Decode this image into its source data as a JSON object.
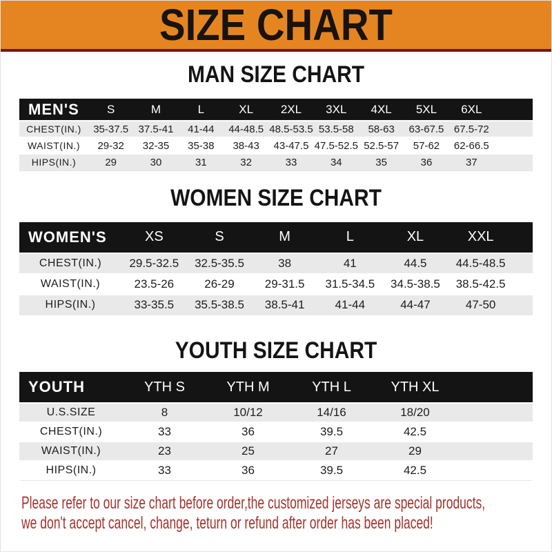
{
  "banner": {
    "title": "SIZE CHART"
  },
  "sections": {
    "men": {
      "heading": "MAN SIZE CHART",
      "header_label": "MEN'S",
      "columns": [
        "S",
        "M",
        "L",
        "XL",
        "2XL",
        "3XL",
        "4XL",
        "5XL",
        "6XL"
      ],
      "rows": [
        {
          "label": "CHEST(IN.)",
          "values": [
            "35-37.5",
            "37.5-41",
            "41-44",
            "44-48.5",
            "48.5-53.5",
            "53.5-58",
            "58-63",
            "63-67.5",
            "67.5-72"
          ]
        },
        {
          "label": "WAIST(IN.)",
          "values": [
            "29-32",
            "32-35",
            "35-38",
            "38-43",
            "43-47.5",
            "47.5-52.5",
            "52.5-57",
            "57-62",
            "62-66.5"
          ]
        },
        {
          "label": "HIPS(IN.)",
          "values": [
            "29",
            "30",
            "31",
            "32",
            "33",
            "34",
            "35",
            "36",
            "37"
          ]
        }
      ]
    },
    "women": {
      "heading": "WOMEN SIZE CHART",
      "header_label": "WOMEN'S",
      "columns": [
        "XS",
        "S",
        "M",
        "L",
        "XL",
        "XXL"
      ],
      "rows": [
        {
          "label": "CHEST(IN.)",
          "values": [
            "29.5-32.5",
            "32.5-35.5",
            "38",
            "41",
            "44.5",
            "44.5-48.5"
          ]
        },
        {
          "label": "WAIST(IN.)",
          "values": [
            "23.5-26",
            "26-29",
            "29-31.5",
            "31.5-34.5",
            "34.5-38.5",
            "38.5-42.5"
          ]
        },
        {
          "label": "HIPS(IN.)",
          "values": [
            "33-35.5",
            "35.5-38.5",
            "38.5-41",
            "41-44",
            "44-47",
            "47-50"
          ]
        }
      ]
    },
    "youth": {
      "heading": "YOUTH SIZE CHART",
      "header_label": "YOUTH",
      "columns": [
        "YTH S",
        "YTH M",
        "YTH L",
        "YTH XL"
      ],
      "rows": [
        {
          "label": "U.S.SIZE",
          "values": [
            "8",
            "10/12",
            "14/16",
            "18/20"
          ]
        },
        {
          "label": "CHEST(IN.)",
          "values": [
            "33",
            "36",
            "39.5",
            "42.5"
          ]
        },
        {
          "label": "WAIST(IN.)",
          "values": [
            "23",
            "25",
            "27",
            "29"
          ]
        },
        {
          "label": "HIPS(IN.)",
          "values": [
            "33",
            "36",
            "39.5",
            "42.5"
          ]
        }
      ]
    }
  },
  "footer": {
    "line1": "Please refer to our size chart before order,the customized jerseys are special products,",
    "line2": "we don't accept cancel, change, teturn or refund after order has been placed!"
  },
  "colors": {
    "banner_bg": "#E58522",
    "banner_border": "#6E1A0E",
    "header_bar_bg": "#141414",
    "row_alt_bg": "#E9E9E9",
    "footer_text": "#A5332C"
  }
}
